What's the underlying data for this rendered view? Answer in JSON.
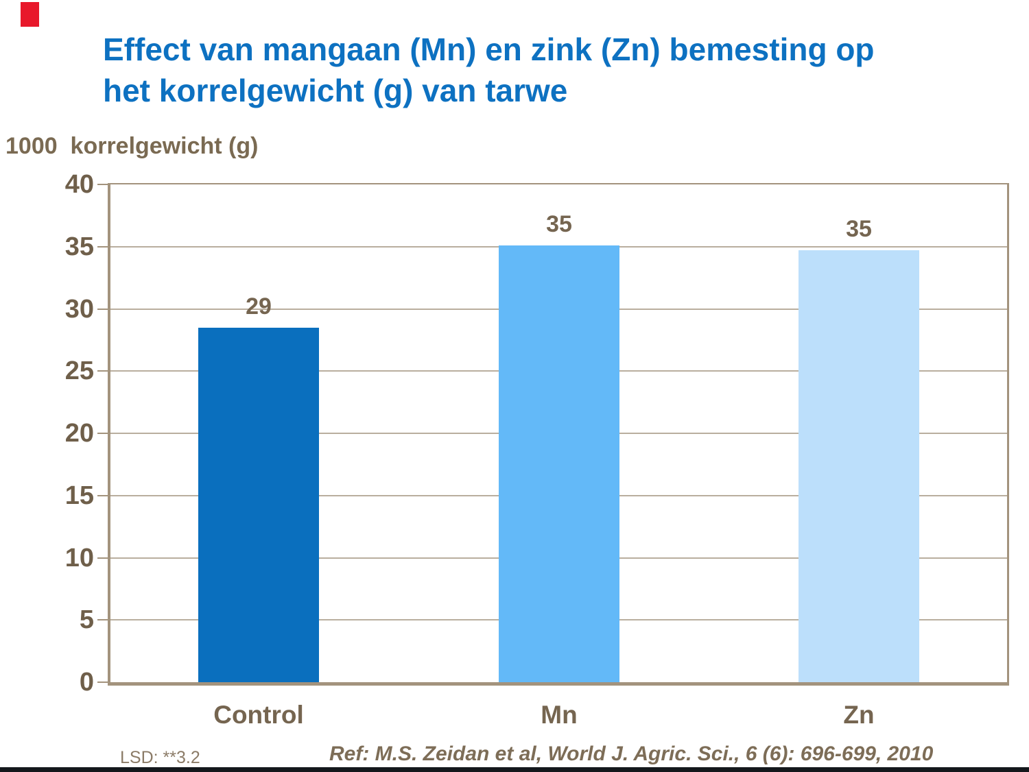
{
  "title": {
    "line1": "Effect van mangaan (Mn) en zink (Zn) bemesting op",
    "line2": "het korrelgewicht (g) van tarwe",
    "color": "#0d71c1"
  },
  "axis_title": "1000  korrelgewicht (g)",
  "footnotes": {
    "lsd": "LSD: **3.2",
    "ref": "Ref: M.S. Zeidan et al, World J. Agric. Sci., 6 (6): 696-699, 2010"
  },
  "decor": {
    "red_accent_color": "#e8182b",
    "bottom_bar_color": "#14181c"
  },
  "chart_data": {
    "type": "bar",
    "title": "Effect van mangaan (Mn) en zink (Zn) bemesting op het korrelgewicht (g) van tarwe",
    "xlabel": "",
    "ylabel": "1000 korrelgewicht (g)",
    "categories": [
      "Control",
      "Mn",
      "Zn"
    ],
    "values": [
      29,
      35,
      35
    ],
    "value_labels": [
      "29",
      "35",
      "35"
    ],
    "draw_values": [
      28.5,
      35.1,
      34.7
    ],
    "bar_colors": [
      "#0a6fbe",
      "#63b9f8",
      "#bcdffb"
    ],
    "ylim": [
      0,
      40
    ],
    "yticks": [
      0,
      5,
      10,
      15,
      20,
      25,
      30,
      35,
      40
    ],
    "grid": true,
    "legend": false,
    "annotations": [
      "LSD: **3.2",
      "Ref: M.S. Zeidan et al, World J. Agric. Sci., 6 (6): 696-699, 2010"
    ],
    "axis_color": "#a3937d",
    "grid_color": "#b9ae9e",
    "tick_label_color": "#6f5f4a",
    "value_label_color": "#756550",
    "category_label_color": "#756550",
    "axis_title_color": "#7a6a52",
    "lsd_color": "#8b7b67",
    "ref_color": "#7d6d57"
  }
}
